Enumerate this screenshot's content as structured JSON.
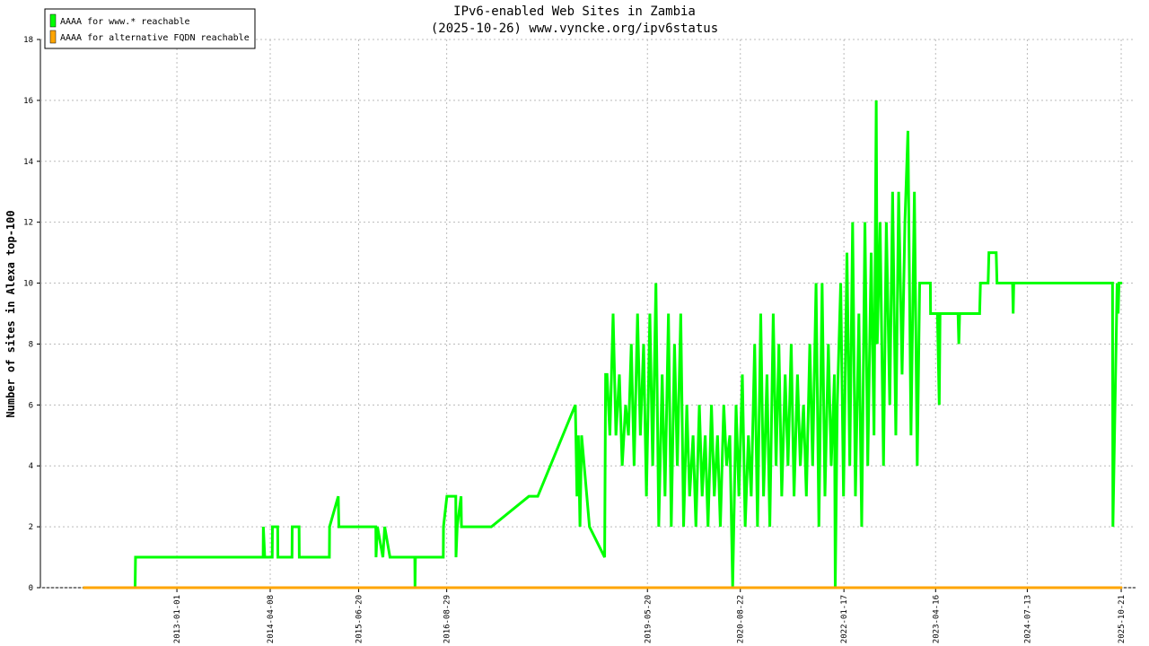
{
  "chart_data": {
    "type": "line",
    "title": "IPv6-enabled Web Sites in Zambia",
    "subtitle": "(2025-10-26) www.vyncke.org/ipv6status",
    "y_label": "Number of sites in Alexa top-100",
    "xlim": [
      "2011-02-25",
      "2025-12-31"
    ],
    "xticks": [
      "2013-01-01",
      "2014-04-08",
      "2015-06-20",
      "2016-08-29",
      "2019-05-20",
      "2020-08-22",
      "2022-01-17",
      "2023-04-16",
      "2024-07-13",
      "2025-10-21"
    ],
    "ylim": [
      0,
      18
    ],
    "yticks": [
      0,
      2,
      4,
      6,
      8,
      10,
      12,
      14,
      16,
      18
    ],
    "grid": true,
    "legend": "upper left",
    "series": [
      {
        "name": "AAAA for www.* reachable",
        "color": "#00ff00",
        "x": [
          "2011-09-24",
          "2012-06-08",
          "2012-06-10",
          "2014-03-04",
          "2014-03-05",
          "2014-03-12",
          "2014-04-18",
          "2014-04-19",
          "2014-05-15",
          "2014-05-16",
          "2014-07-25",
          "2014-07-26",
          "2014-08-29",
          "2014-08-30",
          "2015-01-26",
          "2015-01-27",
          "2015-03-11",
          "2015-03-14",
          "2015-09-13",
          "2015-09-14",
          "2015-09-21",
          "2015-10-18",
          "2015-10-27",
          "2015-11-22",
          "2016-03-24",
          "2016-03-25",
          "2016-03-27",
          "2016-08-12",
          "2016-08-13",
          "2016-08-30",
          "2016-10-13",
          "2016-10-14",
          "2016-10-20",
          "2016-11-08",
          "2016-11-10",
          "2017-04-07",
          "2017-10-10",
          "2017-11-23",
          "2018-05-28",
          "2018-06-05",
          "2018-06-12",
          "2018-06-20",
          "2018-06-28",
          "2018-08-06",
          "2018-10-20",
          "2018-10-25",
          "2018-11-01",
          "2018-11-15",
          "2018-12-01",
          "2018-12-15",
          "2019-01-01",
          "2019-01-15",
          "2019-02-01",
          "2019-02-15",
          "2019-03-01",
          "2019-03-15",
          "2019-04-01",
          "2019-04-15",
          "2019-05-01",
          "2019-05-15",
          "2019-06-01",
          "2019-06-15",
          "2019-07-01",
          "2019-07-15",
          "2019-08-01",
          "2019-08-15",
          "2019-09-01",
          "2019-09-15",
          "2019-10-01",
          "2019-10-15",
          "2019-11-01",
          "2019-11-15",
          "2019-12-01",
          "2019-12-15",
          "2020-01-01",
          "2020-01-15",
          "2020-02-01",
          "2020-02-15",
          "2020-03-01",
          "2020-03-15",
          "2020-04-01",
          "2020-04-15",
          "2020-05-01",
          "2020-05-15",
          "2020-06-01",
          "2020-06-15",
          "2020-07-01",
          "2020-07-15",
          "2020-08-01",
          "2020-08-15",
          "2020-09-01",
          "2020-09-15",
          "2020-10-01",
          "2020-10-15",
          "2020-11-01",
          "2020-11-15",
          "2020-12-01",
          "2020-12-15",
          "2021-01-01",
          "2021-01-15",
          "2021-02-01",
          "2021-02-15",
          "2021-03-01",
          "2021-03-15",
          "2021-04-01",
          "2021-04-15",
          "2021-05-01",
          "2021-05-15",
          "2021-06-01",
          "2021-06-15",
          "2021-07-01",
          "2021-07-15",
          "2021-08-01",
          "2021-08-15",
          "2021-09-01",
          "2021-09-15",
          "2021-10-01",
          "2021-10-15",
          "2021-11-01",
          "2021-11-15",
          "2021-12-01",
          "2021-12-05",
          "2021-12-15",
          "2022-01-01",
          "2022-01-15",
          "2022-02-01",
          "2022-02-15",
          "2022-03-01",
          "2022-03-15",
          "2022-04-01",
          "2022-04-15",
          "2022-05-01",
          "2022-05-15",
          "2022-06-01",
          "2022-06-15",
          "2022-06-26",
          "2022-07-01",
          "2022-07-15",
          "2022-08-01",
          "2022-08-15",
          "2022-09-01",
          "2022-09-15",
          "2022-10-01",
          "2022-10-15",
          "2022-11-01",
          "2022-11-15",
          "2022-11-30",
          "2022-12-15",
          "2023-01-01",
          "2023-01-15",
          "2023-01-27",
          "2023-03-21",
          "2023-03-22",
          "2023-04-25",
          "2023-05-04",
          "2023-05-08",
          "2023-08-05",
          "2023-08-09",
          "2023-08-13",
          "2023-11-20",
          "2023-11-24",
          "2024-01-01",
          "2024-01-05",
          "2024-02-10",
          "2024-02-14",
          "2024-05-01",
          "2024-05-04",
          "2024-05-07",
          "2025-09-08",
          "2025-09-10",
          "2025-10-01",
          "2025-10-06",
          "2025-10-10",
          "2025-10-26"
        ],
        "values": [
          0,
          0,
          1,
          1,
          2,
          1,
          1,
          2,
          2,
          1,
          1,
          2,
          2,
          1,
          1,
          2,
          3,
          2,
          2,
          1,
          2,
          1,
          2,
          1,
          1,
          0,
          1,
          1,
          2,
          3,
          3,
          1,
          2,
          3,
          2,
          2,
          3,
          3,
          6,
          3,
          5,
          2,
          5,
          2,
          1,
          7,
          7,
          5,
          9,
          5,
          7,
          4,
          6,
          5,
          8,
          4,
          9,
          5,
          8,
          3,
          9,
          4,
          10,
          2,
          7,
          3,
          9,
          2,
          8,
          4,
          9,
          2,
          6,
          3,
          5,
          2,
          6,
          3,
          5,
          2,
          6,
          3,
          5,
          2,
          6,
          4,
          5,
          0,
          6,
          3,
          7,
          2,
          5,
          3,
          8,
          2,
          9,
          3,
          7,
          2,
          9,
          4,
          8,
          3,
          7,
          4,
          8,
          3,
          7,
          4,
          6,
          3,
          8,
          4,
          10,
          2,
          10,
          3,
          8,
          4,
          7,
          0,
          6,
          10,
          3,
          11,
          4,
          12,
          3,
          9,
          2,
          12,
          4,
          11,
          5,
          16,
          8,
          12,
          4,
          12,
          6,
          13,
          5,
          13,
          7,
          12,
          15,
          5,
          13,
          4,
          10,
          10,
          9,
          9,
          6,
          9,
          9,
          8,
          9,
          9,
          10,
          10,
          11,
          11,
          10,
          10,
          9,
          10,
          10,
          2,
          10,
          9,
          10,
          10
        ]
      },
      {
        "name": "AAAA for alternative FQDN reachable",
        "color": "#ffa500",
        "x": [
          "2011-09-24",
          "2025-10-26"
        ],
        "values": [
          0,
          0
        ]
      }
    ]
  }
}
